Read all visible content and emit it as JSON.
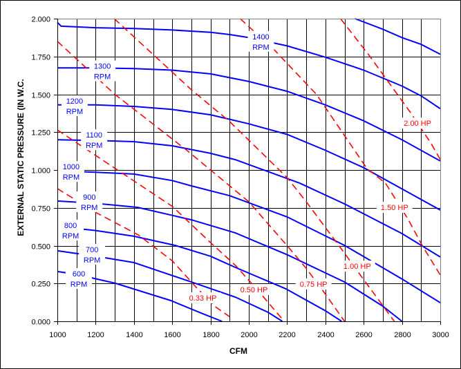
{
  "chart_data": {
    "type": "line",
    "title": "",
    "xlabel": "CFM",
    "ylabel": "EXTERNAL STATIC PRESSURE (IN W.C.",
    "xlim": [
      1000,
      3000
    ],
    "ylim": [
      0,
      2
    ],
    "x_ticks": [
      "1000",
      "1200",
      "1400",
      "1600",
      "1800",
      "2000",
      "2200",
      "2400",
      "2600",
      "2800",
      "3000"
    ],
    "x_tick_values": [
      1000,
      1200,
      1400,
      1600,
      1800,
      2000,
      2200,
      2400,
      2600,
      2800,
      3000
    ],
    "y_ticks": [
      "0.000",
      "0.250",
      "0.500",
      "0.750",
      "1.000",
      "1.250",
      "1.500",
      "1.750",
      "2.000"
    ],
    "y_tick_values": [
      0,
      0.25,
      0.5,
      0.75,
      1,
      1.25,
      1.5,
      1.75,
      2
    ],
    "grid": {
      "x_step": 100,
      "y_step": 0.25
    },
    "colors": {
      "rpm": "#0000ff",
      "hp": "#ff0000",
      "grid": "#000000",
      "frame": "#808080"
    },
    "rpm_series": [
      {
        "name": "",
        "label": [
          "",
          ""
        ],
        "label_at": null,
        "points": [
          [
            2555,
            2.0
          ],
          [
            2700,
            1.93
          ],
          [
            2800,
            1.875
          ],
          [
            2900,
            1.83
          ],
          [
            3000,
            1.765
          ]
        ]
      },
      {
        "name": "1400 RPM",
        "label": [
          "1400",
          "RPM"
        ],
        "label_at": [
          2063,
          1.85
        ],
        "points": [
          [
            1000,
            1.975
          ],
          [
            1020,
            1.95
          ],
          [
            1200,
            1.94
          ],
          [
            1400,
            1.935
          ],
          [
            1600,
            1.925
          ],
          [
            1800,
            1.91
          ],
          [
            1900,
            1.895
          ],
          [
            2000,
            1.875
          ],
          [
            2200,
            1.82
          ],
          [
            2400,
            1.745
          ],
          [
            2600,
            1.66
          ],
          [
            2800,
            1.555
          ],
          [
            2900,
            1.49
          ],
          [
            3000,
            1.405
          ]
        ]
      },
      {
        "name": "1300 RPM",
        "label": [
          "1300",
          "RPM"
        ],
        "label_at": [
          1235,
          1.655
        ],
        "points": [
          [
            1000,
            1.675
          ],
          [
            1200,
            1.675
          ],
          [
            1400,
            1.67
          ],
          [
            1600,
            1.66
          ],
          [
            1800,
            1.635
          ],
          [
            1900,
            1.61
          ],
          [
            2000,
            1.585
          ],
          [
            2200,
            1.52
          ],
          [
            2400,
            1.43
          ],
          [
            2600,
            1.325
          ],
          [
            2800,
            1.2
          ],
          [
            3000,
            1.06
          ]
        ]
      },
      {
        "name": "1200 RPM",
        "label": [
          "1200",
          "RPM"
        ],
        "label_at": [
          1090,
          1.425
        ],
        "points": [
          [
            1000,
            1.43
          ],
          [
            1200,
            1.43
          ],
          [
            1400,
            1.42
          ],
          [
            1600,
            1.4
          ],
          [
            1800,
            1.365
          ],
          [
            1900,
            1.335
          ],
          [
            2000,
            1.305
          ],
          [
            2200,
            1.235
          ],
          [
            2400,
            1.13
          ],
          [
            2600,
            1.015
          ],
          [
            2800,
            0.875
          ],
          [
            3000,
            0.735
          ]
        ]
      },
      {
        "name": "1100 RPM",
        "label": [
          "1100",
          "RPM"
        ],
        "label_at": [
          1192,
          1.2
        ],
        "points": [
          [
            1000,
            1.2
          ],
          [
            1200,
            1.195
          ],
          [
            1400,
            1.187
          ],
          [
            1600,
            1.16
          ],
          [
            1800,
            1.11
          ],
          [
            1930,
            1.068
          ],
          [
            2100,
            0.99
          ],
          [
            2266,
            0.913
          ],
          [
            2500,
            0.776
          ],
          [
            2800,
            0.58
          ],
          [
            3000,
            0.425
          ]
        ]
      },
      {
        "name": "1000 RPM",
        "label": [
          "1000",
          "RPM"
        ],
        "label_at": [
          1072,
          0.99
        ],
        "points": [
          [
            1000,
            0.995
          ],
          [
            1200,
            0.985
          ],
          [
            1400,
            0.973
          ],
          [
            1600,
            0.93
          ],
          [
            1700,
            0.895
          ],
          [
            1900,
            0.83
          ],
          [
            2200,
            0.69
          ],
          [
            2500,
            0.502
          ],
          [
            2800,
            0.28
          ],
          [
            3000,
            0.123
          ]
        ]
      },
      {
        "name": "900 RPM",
        "label": [
          "900",
          "RPM"
        ],
        "label_at": [
          1167,
          0.79
        ],
        "points": [
          [
            1000,
            0.795
          ],
          [
            1200,
            0.78
          ],
          [
            1420,
            0.753
          ],
          [
            1700,
            0.671
          ],
          [
            1930,
            0.584
          ],
          [
            2200,
            0.44
          ],
          [
            2500,
            0.26
          ],
          [
            2700,
            0.1
          ],
          [
            2800,
            0
          ]
        ]
      },
      {
        "name": "800 RPM",
        "label": [
          "800",
          "RPM"
        ],
        "label_at": [
          1069,
          0.603
        ],
        "points": [
          [
            1000,
            0.626
          ],
          [
            1200,
            0.6
          ],
          [
            1400,
            0.562
          ],
          [
            1615,
            0.502
          ],
          [
            1800,
            0.43
          ],
          [
            1930,
            0.356
          ],
          [
            2193,
            0.215
          ],
          [
            2400,
            0.07
          ],
          [
            2485,
            0
          ]
        ]
      },
      {
        "name": "700 RPM",
        "label": [
          "700",
          "RPM"
        ],
        "label_at": [
          1181,
          0.443
        ],
        "points": [
          [
            1000,
            0.466
          ],
          [
            1200,
            0.43
          ],
          [
            1400,
            0.388
          ],
          [
            1700,
            0.26
          ],
          [
            1930,
            0.16
          ],
          [
            2100,
            0.06
          ],
          [
            2175,
            0
          ]
        ]
      },
      {
        "name": "600 RPM",
        "label": [
          "600",
          "RPM"
        ],
        "label_at": [
          1112,
          0.283
        ],
        "points": [
          [
            1000,
            0.329
          ],
          [
            1100,
            0.31
          ],
          [
            1304,
            0.251
          ],
          [
            1593,
            0.137
          ],
          [
            1760,
            0.05
          ],
          [
            1860,
            0
          ]
        ]
      }
    ],
    "hp_series": [
      {
        "name": "0.33 HP",
        "label": "0.33 HP",
        "label_at": [
          1760,
          0.155
        ],
        "points": [
          [
            1000,
            0.877
          ],
          [
            1200,
            0.72
          ],
          [
            1423,
            0.571
          ],
          [
            1600,
            0.4
          ],
          [
            1723,
            0.228
          ],
          [
            1821,
            0.1
          ],
          [
            1900,
            0.03
          ]
        ]
      },
      {
        "name": "0.50 HP",
        "label": "0.50 HP",
        "label_at": [
          2027,
          0.21
        ],
        "points": [
          [
            1000,
            1.265
          ],
          [
            1350,
            0.97
          ],
          [
            1600,
            0.76
          ],
          [
            1800,
            0.52
          ],
          [
            1930,
            0.37
          ],
          [
            2050,
            0.2
          ],
          [
            2185,
            0
          ]
        ]
      },
      {
        "name": "0.75 HP",
        "label": "0.75 HP",
        "label_at": [
          2338,
          0.247
        ],
        "points": [
          [
            1000,
            1.85
          ],
          [
            1300,
            1.5
          ],
          [
            1676,
            1.13
          ],
          [
            2000,
            0.79
          ],
          [
            2200,
            0.5
          ],
          [
            2300,
            0.35
          ],
          [
            2400,
            0.18
          ],
          [
            2500,
            0
          ]
        ]
      },
      {
        "name": "1.00 HP",
        "label": "1.00 HP",
        "label_at": [
          2566,
          0.365
        ],
        "points": [
          [
            1297,
            2.0
          ],
          [
            1700,
            1.53
          ],
          [
            1900,
            1.32
          ],
          [
            2200,
            0.95
          ],
          [
            2300,
            0.79
          ],
          [
            2500,
            0.45
          ],
          [
            2580,
            0.31
          ],
          [
            2760,
            0
          ]
        ]
      },
      {
        "name": "1.50 HP",
        "label": "1.50 HP",
        "label_at": [
          2761,
          0.753
        ],
        "points": [
          [
            1955,
            2.0
          ],
          [
            2136,
            1.79
          ],
          [
            2353,
            1.5
          ],
          [
            2617,
            1.01
          ],
          [
            2714,
            0.913
          ],
          [
            2834,
            0.67
          ],
          [
            2906,
            0.5
          ],
          [
            3000,
            0.306
          ]
        ]
      },
      {
        "name": "2.00 HP",
        "label": "2.00 HP",
        "label_at": [
          2881,
          1.31
        ],
        "points": [
          [
            2479,
            2.0
          ],
          [
            2628,
            1.758
          ],
          [
            2845,
            1.379
          ],
          [
            2950,
            1.18
          ],
          [
            3000,
            1.07
          ]
        ]
      }
    ]
  }
}
